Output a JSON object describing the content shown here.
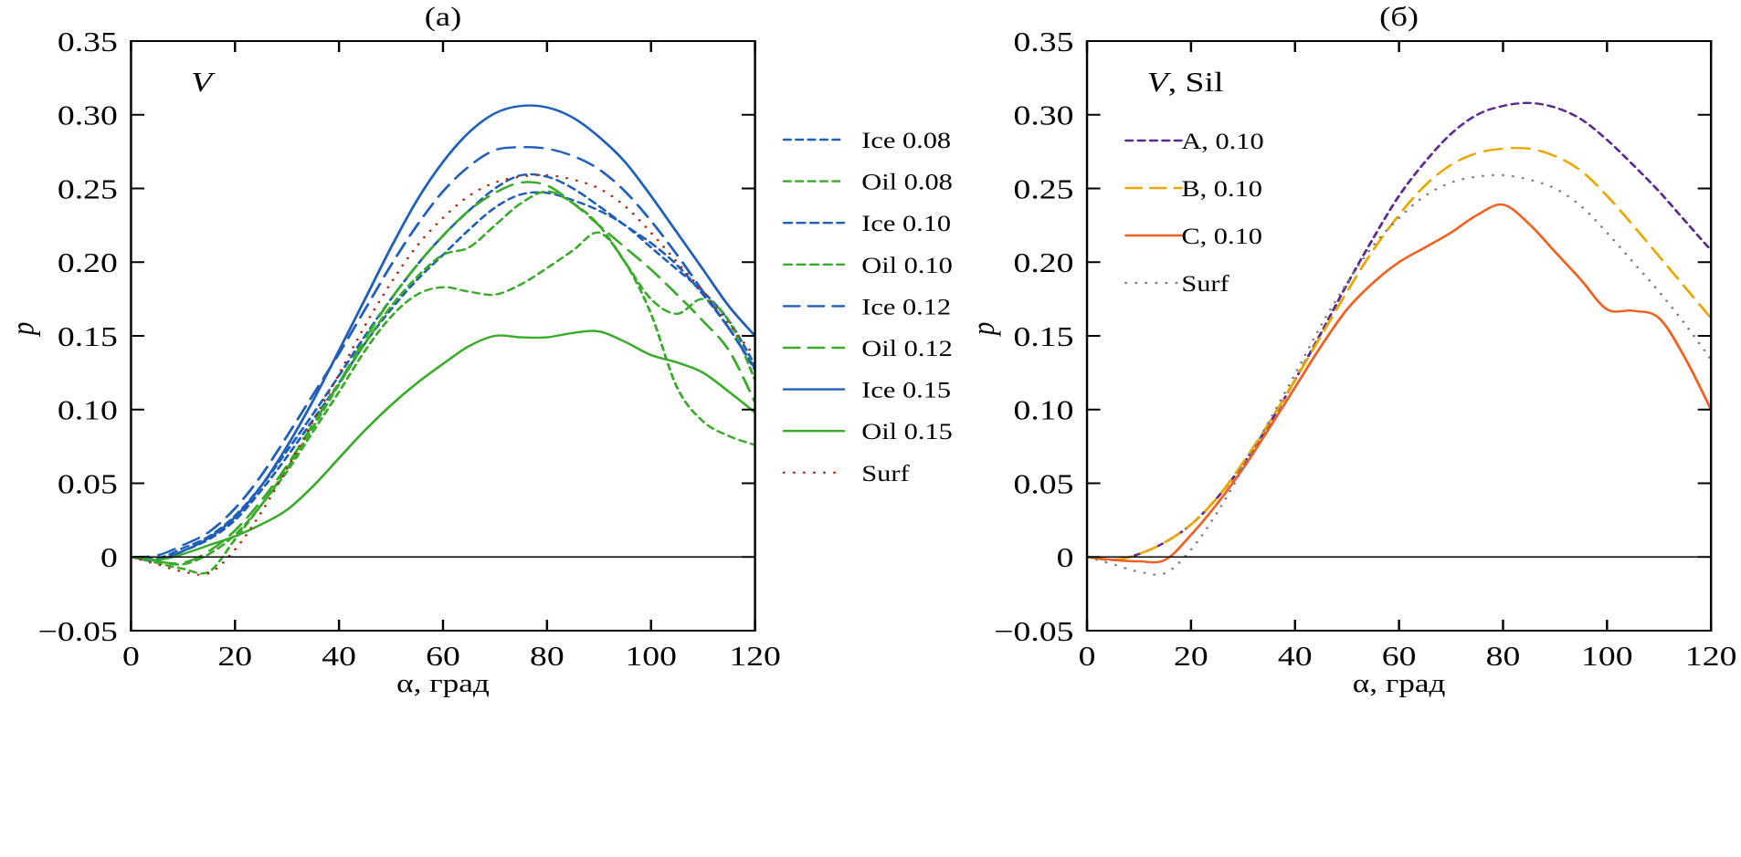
{
  "chart_data": [
    {
      "type": "line",
      "title": "(a)",
      "annotation": "V",
      "xlabel": "α, град",
      "ylabel": "p",
      "xlim": [
        0,
        120
      ],
      "ylim": [
        -0.05,
        0.35
      ],
      "xticks": [
        "0",
        "20",
        "40",
        "60",
        "80",
        "100",
        "120"
      ],
      "yticks": [
        "−0.05",
        "0",
        "0.05",
        "0.10",
        "0.15",
        "0.20",
        "0.25",
        "0.30",
        "0.35"
      ],
      "grid": false,
      "legend_position": "outside-right",
      "x": [
        0,
        5,
        10,
        15,
        20,
        25,
        30,
        35,
        40,
        45,
        50,
        55,
        60,
        65,
        70,
        75,
        80,
        85,
        90,
        95,
        100,
        105,
        110,
        115,
        120
      ],
      "series": [
        {
          "name": "Ice 0.08",
          "color": "#1f5fb8",
          "style": "short-dash",
          "values": [
            0,
            -0.002,
            0.004,
            0.012,
            0.025,
            0.045,
            0.068,
            0.093,
            0.118,
            0.145,
            0.168,
            0.188,
            0.205,
            0.222,
            0.237,
            0.246,
            0.247,
            0.242,
            0.235,
            0.225,
            0.21,
            0.195,
            0.18,
            0.16,
            0.13
          ]
        },
        {
          "name": "Oil 0.08",
          "color": "#3aaa2a",
          "style": "short-dash",
          "values": [
            0,
            -0.004,
            -0.008,
            -0.01,
            0.012,
            0.035,
            0.058,
            0.085,
            0.112,
            0.14,
            0.163,
            0.178,
            0.183,
            0.18,
            0.178,
            0.185,
            0.196,
            0.208,
            0.22,
            0.2,
            0.165,
            0.115,
            0.092,
            0.082,
            0.076
          ]
        },
        {
          "name": "Ice 0.10",
          "color": "#1f5fb8",
          "style": "dash-dot",
          "values": [
            0,
            -0.001,
            0.006,
            0.014,
            0.028,
            0.048,
            0.072,
            0.097,
            0.123,
            0.15,
            0.175,
            0.198,
            0.218,
            0.235,
            0.25,
            0.259,
            0.258,
            0.25,
            0.238,
            0.225,
            0.213,
            0.198,
            0.178,
            0.155,
            0.127
          ]
        },
        {
          "name": "Oil 0.10",
          "color": "#3aaa2a",
          "style": "dash-dot",
          "values": [
            0,
            -0.003,
            -0.005,
            0.002,
            0.015,
            0.035,
            0.06,
            0.088,
            0.117,
            0.145,
            0.17,
            0.19,
            0.205,
            0.21,
            0.225,
            0.24,
            0.248,
            0.24,
            0.225,
            0.2,
            0.175,
            0.165,
            0.175,
            0.16,
            0.12
          ]
        },
        {
          "name": "Ice 0.12",
          "color": "#1f5fb8",
          "style": "long-dash",
          "values": [
            0,
            0.001,
            0.008,
            0.017,
            0.033,
            0.055,
            0.082,
            0.11,
            0.138,
            0.168,
            0.198,
            0.225,
            0.248,
            0.265,
            0.276,
            0.278,
            0.277,
            0.272,
            0.263,
            0.248,
            0.228,
            0.205,
            0.18,
            0.155,
            0.128
          ]
        },
        {
          "name": "Oil 0.12",
          "color": "#3aaa2a",
          "style": "long-dash",
          "values": [
            0,
            -0.003,
            -0.004,
            0.004,
            0.018,
            0.038,
            0.062,
            0.09,
            0.118,
            0.148,
            0.175,
            0.198,
            0.218,
            0.235,
            0.247,
            0.254,
            0.252,
            0.24,
            0.225,
            0.21,
            0.195,
            0.178,
            0.16,
            0.14,
            0.105
          ]
        },
        {
          "name": "Ice 0.15",
          "color": "#1f5fb8",
          "style": "solid",
          "values": [
            0,
            -0.002,
            0.004,
            0.013,
            0.027,
            0.048,
            0.075,
            0.106,
            0.14,
            0.175,
            0.21,
            0.242,
            0.268,
            0.288,
            0.301,
            0.306,
            0.305,
            0.298,
            0.285,
            0.268,
            0.245,
            0.22,
            0.195,
            0.17,
            0.15
          ]
        },
        {
          "name": "Oil 0.15",
          "color": "#3aaa2a",
          "style": "solid",
          "values": [
            0,
            -0.002,
            0.002,
            0.008,
            0.014,
            0.022,
            0.032,
            0.048,
            0.067,
            0.086,
            0.103,
            0.118,
            0.131,
            0.143,
            0.15,
            0.149,
            0.149,
            0.152,
            0.153,
            0.146,
            0.137,
            0.132,
            0.125,
            0.112,
            0.098
          ]
        },
        {
          "name": "Surf",
          "color": "#b22a10",
          "style": "dotted",
          "values": [
            0,
            -0.005,
            -0.01,
            -0.011,
            0.005,
            0.03,
            0.06,
            0.092,
            0.124,
            0.157,
            0.186,
            0.211,
            0.23,
            0.245,
            0.254,
            0.258,
            0.259,
            0.256,
            0.25,
            0.238,
            0.22,
            0.2,
            0.18,
            0.158,
            0.136
          ]
        }
      ]
    },
    {
      "type": "line",
      "title": "(б)",
      "annotation": "V, Sil",
      "annotation_italic": "V",
      "annotation_rest": ", Sil",
      "xlabel": "α, град",
      "ylabel": "p",
      "xlim": [
        0,
        120
      ],
      "ylim": [
        -0.05,
        0.35
      ],
      "xticks": [
        "0",
        "20",
        "40",
        "60",
        "80",
        "100",
        "120"
      ],
      "yticks": [
        "−0.05",
        "0",
        "0.05",
        "0.10",
        "0.15",
        "0.20",
        "0.25",
        "0.30",
        "0.35"
      ],
      "grid": false,
      "legend_position": "top-left",
      "x": [
        0,
        5,
        10,
        15,
        20,
        25,
        30,
        35,
        40,
        45,
        50,
        55,
        60,
        65,
        70,
        75,
        80,
        85,
        90,
        95,
        100,
        105,
        110,
        115,
        120
      ],
      "series": [
        {
          "name": "A, 0.10",
          "color": "#5b2a8c",
          "style": "short-dash",
          "values": [
            0,
            -0.002,
            0.002,
            0.01,
            0.022,
            0.04,
            0.063,
            0.09,
            0.12,
            0.152,
            0.185,
            0.216,
            0.245,
            0.268,
            0.287,
            0.3,
            0.306,
            0.308,
            0.305,
            0.297,
            0.283,
            0.266,
            0.248,
            0.228,
            0.208
          ]
        },
        {
          "name": "B, 0.10",
          "color": "#e8a800",
          "style": "long-dash",
          "values": [
            0,
            -0.002,
            0.002,
            0.01,
            0.022,
            0.04,
            0.064,
            0.091,
            0.12,
            0.15,
            0.18,
            0.208,
            0.232,
            0.252,
            0.266,
            0.274,
            0.277,
            0.277,
            0.272,
            0.262,
            0.245,
            0.225,
            0.204,
            0.183,
            0.162
          ]
        },
        {
          "name": "C, 0.10",
          "color": "#f06020",
          "style": "solid",
          "values": [
            0,
            -0.002,
            -0.003,
            -0.002,
            0.015,
            0.036,
            0.06,
            0.087,
            0.115,
            0.143,
            0.168,
            0.186,
            0.2,
            0.21,
            0.22,
            0.232,
            0.239,
            0.226,
            0.207,
            0.188,
            0.168,
            0.167,
            0.162,
            0.135,
            0.1
          ]
        },
        {
          "name": "Surf",
          "color": "#7a8288",
          "style": "dotted",
          "values": [
            0,
            -0.005,
            -0.01,
            -0.011,
            0.005,
            0.03,
            0.06,
            0.092,
            0.124,
            0.157,
            0.186,
            0.211,
            0.23,
            0.245,
            0.254,
            0.258,
            0.259,
            0.256,
            0.25,
            0.238,
            0.22,
            0.2,
            0.18,
            0.158,
            0.134
          ]
        }
      ]
    }
  ]
}
